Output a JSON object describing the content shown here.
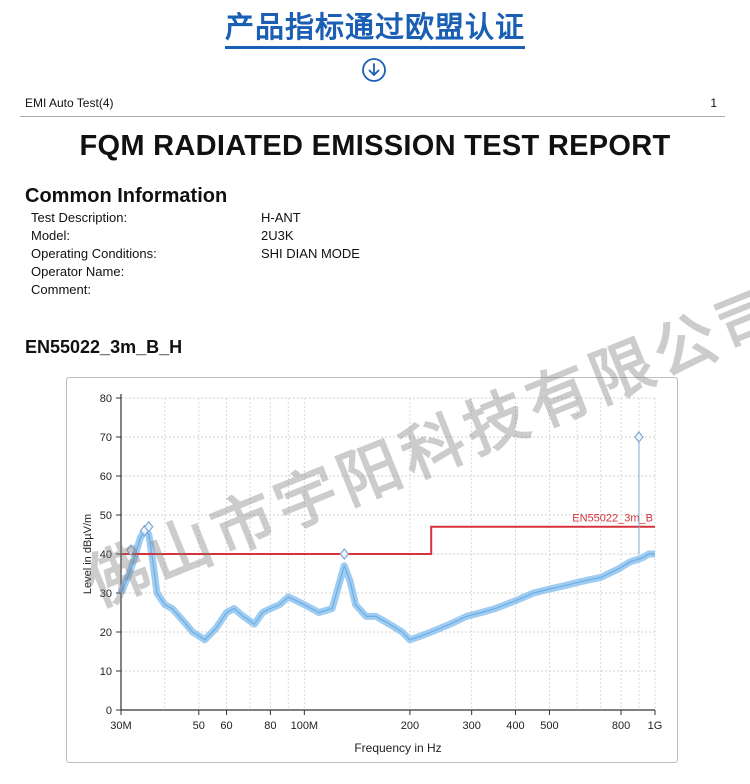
{
  "banner": {
    "title": "产品指标通过欧盟认证",
    "icon": "arrow-down-circle-icon",
    "color": "#1a5fb4"
  },
  "header": {
    "left": "EMI Auto Test(4)",
    "right": "1"
  },
  "report_title": "FQM RADIATED EMISSION TEST REPORT",
  "common_info": {
    "title": "Common Information",
    "rows": [
      {
        "label": "Test Description:",
        "value": "H-ANT"
      },
      {
        "label": "Model:",
        "value": "2U3K"
      },
      {
        "label": "Operating Conditions:",
        "value": "SHI DIAN MODE"
      },
      {
        "label": "Operator Name:",
        "value": ""
      },
      {
        "label": "Comment:",
        "value": ""
      }
    ]
  },
  "limit_title": "EN55022_3m_B_H",
  "chart_data": {
    "type": "line",
    "xlabel": "Frequency in Hz",
    "ylabel": "Level in dBµV/m",
    "x_scale": "log",
    "xlim": [
      30,
      1000
    ],
    "ylim": [
      0,
      80
    ],
    "grid": true,
    "y_ticks": [
      0,
      10,
      20,
      30,
      40,
      50,
      60,
      70,
      80
    ],
    "x_ticks": [
      {
        "value": 30,
        "label": "30M"
      },
      {
        "value": 50,
        "label": "50"
      },
      {
        "value": 60,
        "label": "60"
      },
      {
        "value": 80,
        "label": "80"
      },
      {
        "value": 100,
        "label": "100M"
      },
      {
        "value": 200,
        "label": "200"
      },
      {
        "value": 300,
        "label": "300"
      },
      {
        "value": 400,
        "label": "400"
      },
      {
        "value": 500,
        "label": "500"
      },
      {
        "value": 800,
        "label": "800"
      },
      {
        "value": 1000,
        "label": "1G"
      }
    ],
    "limit": {
      "name": "EN55022_3m_B",
      "color": "#d6323c",
      "segments": [
        {
          "x": [
            30,
            230
          ],
          "y": 40
        },
        {
          "x": [
            230,
            1000
          ],
          "y": 47
        }
      ]
    },
    "series": [
      {
        "color": "#8fc3ee",
        "points": [
          [
            30,
            30
          ],
          [
            31,
            33
          ],
          [
            32,
            36
          ],
          [
            33,
            40
          ],
          [
            34,
            44
          ],
          [
            35,
            46
          ],
          [
            36,
            45
          ],
          [
            37,
            38
          ],
          [
            38,
            30
          ],
          [
            40,
            27
          ],
          [
            42,
            26
          ],
          [
            45,
            23
          ],
          [
            48,
            20
          ],
          [
            52,
            18
          ],
          [
            56,
            21
          ],
          [
            60,
            25
          ],
          [
            63,
            26
          ],
          [
            67,
            24
          ],
          [
            72,
            22
          ],
          [
            76,
            25
          ],
          [
            80,
            26
          ],
          [
            85,
            27
          ],
          [
            90,
            29
          ],
          [
            95,
            28
          ],
          [
            100,
            27
          ],
          [
            110,
            25
          ],
          [
            120,
            26
          ],
          [
            130,
            37
          ],
          [
            135,
            33
          ],
          [
            140,
            27
          ],
          [
            150,
            24
          ],
          [
            160,
            24
          ],
          [
            175,
            22
          ],
          [
            190,
            20
          ],
          [
            200,
            18
          ],
          [
            215,
            19
          ],
          [
            230,
            20
          ],
          [
            260,
            22
          ],
          [
            290,
            24
          ],
          [
            320,
            25
          ],
          [
            350,
            26
          ],
          [
            400,
            28
          ],
          [
            450,
            30
          ],
          [
            500,
            31
          ],
          [
            560,
            32
          ],
          [
            620,
            33
          ],
          [
            700,
            34
          ],
          [
            780,
            36
          ],
          [
            850,
            38
          ],
          [
            920,
            39
          ],
          [
            960,
            40
          ],
          [
            1000,
            40
          ]
        ]
      }
    ],
    "markers": [
      {
        "x": 32,
        "y": 41
      },
      {
        "x": 35,
        "y": 46
      },
      {
        "x": 36,
        "y": 47
      },
      {
        "x": 130,
        "y": 40
      },
      {
        "x": 900,
        "y": 70
      }
    ],
    "marker_color": "#7fa8d4"
  },
  "watermark": "佛山市宇阳科技有限公司"
}
